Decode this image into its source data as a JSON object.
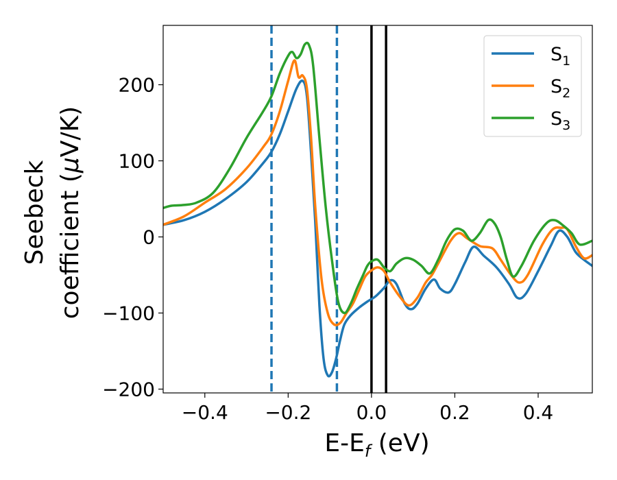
{
  "chart_data": {
    "type": "line",
    "title": "",
    "xlabel": {
      "main": "E-E",
      "subscript": "f",
      "suffix": " (eV)"
    },
    "ylabel": {
      "line1": "Seebeck",
      "line2_prefix": "coefficient  (",
      "mu": "μ",
      "line2_suffix": "V/K)"
    },
    "xlim": [
      -0.5,
      0.53
    ],
    "ylim": [
      -205,
      278
    ],
    "xticks": [
      {
        "value": -0.4,
        "label": "−0.4"
      },
      {
        "value": -0.2,
        "label": "−0.2"
      },
      {
        "value": 0.0,
        "label": "0.0"
      },
      {
        "value": 0.2,
        "label": "0.2"
      },
      {
        "value": 0.4,
        "label": "0.4"
      }
    ],
    "yticks": [
      {
        "value": -200,
        "label": "−200"
      },
      {
        "value": -100,
        "label": "−100"
      },
      {
        "value": 0,
        "label": "0"
      },
      {
        "value": 100,
        "label": "100"
      },
      {
        "value": 200,
        "label": "200"
      }
    ],
    "grid": false,
    "legend_position": "top-right",
    "vlines": [
      {
        "x": -0.24,
        "style": "dashed",
        "color": "#1f77b4"
      },
      {
        "x": -0.083,
        "style": "dashed",
        "color": "#1f77b4"
      },
      {
        "x": 0.0,
        "style": "solid",
        "color": "#000000"
      },
      {
        "x": 0.035,
        "style": "solid",
        "color": "#000000"
      }
    ],
    "series": [
      {
        "name": "S",
        "subscript": "1",
        "color": "#1f77b4",
        "points": [
          [
            -0.5,
            16
          ],
          [
            -0.45,
            22
          ],
          [
            -0.4,
            33
          ],
          [
            -0.35,
            50
          ],
          [
            -0.3,
            72
          ],
          [
            -0.26,
            97
          ],
          [
            -0.24,
            112
          ],
          [
            -0.22,
            135
          ],
          [
            -0.2,
            165
          ],
          [
            -0.18,
            195
          ],
          [
            -0.165,
            205
          ],
          [
            -0.155,
            185
          ],
          [
            -0.145,
            110
          ],
          [
            -0.135,
            20
          ],
          [
            -0.125,
            -90
          ],
          [
            -0.115,
            -160
          ],
          [
            -0.105,
            -182
          ],
          [
            -0.095,
            -178
          ],
          [
            -0.085,
            -160
          ],
          [
            -0.075,
            -135
          ],
          [
            -0.065,
            -115
          ],
          [
            -0.05,
            -103
          ],
          [
            -0.03,
            -93
          ],
          [
            -0.01,
            -85
          ],
          [
            0.01,
            -78
          ],
          [
            0.03,
            -67
          ],
          [
            0.045,
            -57
          ],
          [
            0.06,
            -62
          ],
          [
            0.08,
            -88
          ],
          [
            0.095,
            -95
          ],
          [
            0.11,
            -88
          ],
          [
            0.13,
            -68
          ],
          [
            0.15,
            -56
          ],
          [
            0.165,
            -68
          ],
          [
            0.185,
            -73
          ],
          [
            0.2,
            -62
          ],
          [
            0.225,
            -33
          ],
          [
            0.245,
            -13
          ],
          [
            0.27,
            -25
          ],
          [
            0.3,
            -40
          ],
          [
            0.33,
            -62
          ],
          [
            0.35,
            -80
          ],
          [
            0.37,
            -75
          ],
          [
            0.4,
            -45
          ],
          [
            0.43,
            -12
          ],
          [
            0.45,
            8
          ],
          [
            0.47,
            0
          ],
          [
            0.49,
            -20
          ],
          [
            0.51,
            -30
          ],
          [
            0.53,
            -38
          ]
        ]
      },
      {
        "name": "S",
        "subscript": "2",
        "color": "#ff7f0e",
        "points": [
          [
            -0.5,
            16
          ],
          [
            -0.45,
            27
          ],
          [
            -0.4,
            45
          ],
          [
            -0.35,
            63
          ],
          [
            -0.3,
            90
          ],
          [
            -0.26,
            118
          ],
          [
            -0.24,
            135
          ],
          [
            -0.22,
            165
          ],
          [
            -0.2,
            205
          ],
          [
            -0.185,
            232
          ],
          [
            -0.175,
            210
          ],
          [
            -0.165,
            212
          ],
          [
            -0.155,
            195
          ],
          [
            -0.145,
            130
          ],
          [
            -0.135,
            40
          ],
          [
            -0.12,
            -55
          ],
          [
            -0.105,
            -100
          ],
          [
            -0.09,
            -115
          ],
          [
            -0.075,
            -113
          ],
          [
            -0.06,
            -100
          ],
          [
            -0.045,
            -88
          ],
          [
            -0.03,
            -70
          ],
          [
            -0.015,
            -52
          ],
          [
            0.0,
            -44
          ],
          [
            0.015,
            -40
          ],
          [
            0.03,
            -45
          ],
          [
            0.045,
            -60
          ],
          [
            0.07,
            -80
          ],
          [
            0.09,
            -90
          ],
          [
            0.11,
            -80
          ],
          [
            0.13,
            -60
          ],
          [
            0.145,
            -50
          ],
          [
            0.16,
            -35
          ],
          [
            0.19,
            -5
          ],
          [
            0.21,
            5
          ],
          [
            0.23,
            -2
          ],
          [
            0.26,
            -12
          ],
          [
            0.29,
            -15
          ],
          [
            0.31,
            -30
          ],
          [
            0.335,
            -50
          ],
          [
            0.355,
            -60
          ],
          [
            0.375,
            -50
          ],
          [
            0.41,
            -10
          ],
          [
            0.435,
            10
          ],
          [
            0.455,
            12
          ],
          [
            0.47,
            10
          ],
          [
            0.49,
            -12
          ],
          [
            0.51,
            -28
          ],
          [
            0.53,
            -24
          ]
        ]
      },
      {
        "name": "S",
        "subscript": "3",
        "color": "#2ca02c",
        "points": [
          [
            -0.5,
            38
          ],
          [
            -0.48,
            41
          ],
          [
            -0.45,
            42
          ],
          [
            -0.42,
            45
          ],
          [
            -0.38,
            58
          ],
          [
            -0.34,
            90
          ],
          [
            -0.3,
            130
          ],
          [
            -0.26,
            165
          ],
          [
            -0.24,
            185
          ],
          [
            -0.22,
            215
          ],
          [
            -0.2,
            238
          ],
          [
            -0.19,
            243
          ],
          [
            -0.18,
            235
          ],
          [
            -0.17,
            240
          ],
          [
            -0.16,
            253
          ],
          [
            -0.15,
            252
          ],
          [
            -0.14,
            225
          ],
          [
            -0.125,
            130
          ],
          [
            -0.11,
            40
          ],
          [
            -0.095,
            -30
          ],
          [
            -0.08,
            -85
          ],
          [
            -0.065,
            -100
          ],
          [
            -0.05,
            -88
          ],
          [
            -0.035,
            -68
          ],
          [
            -0.02,
            -50
          ],
          [
            -0.01,
            -38
          ],
          [
            0.0,
            -32
          ],
          [
            0.015,
            -30
          ],
          [
            0.03,
            -40
          ],
          [
            0.045,
            -45
          ],
          [
            0.06,
            -35
          ],
          [
            0.08,
            -28
          ],
          [
            0.1,
            -30
          ],
          [
            0.12,
            -38
          ],
          [
            0.14,
            -48
          ],
          [
            0.16,
            -30
          ],
          [
            0.18,
            -5
          ],
          [
            0.2,
            10
          ],
          [
            0.22,
            8
          ],
          [
            0.24,
            -5
          ],
          [
            0.26,
            5
          ],
          [
            0.28,
            22
          ],
          [
            0.295,
            18
          ],
          [
            0.31,
            0
          ],
          [
            0.325,
            -30
          ],
          [
            0.34,
            -52
          ],
          [
            0.36,
            -38
          ],
          [
            0.39,
            -5
          ],
          [
            0.42,
            18
          ],
          [
            0.44,
            22
          ],
          [
            0.46,
            15
          ],
          [
            0.48,
            5
          ],
          [
            0.5,
            -10
          ],
          [
            0.53,
            -5
          ]
        ]
      }
    ]
  }
}
